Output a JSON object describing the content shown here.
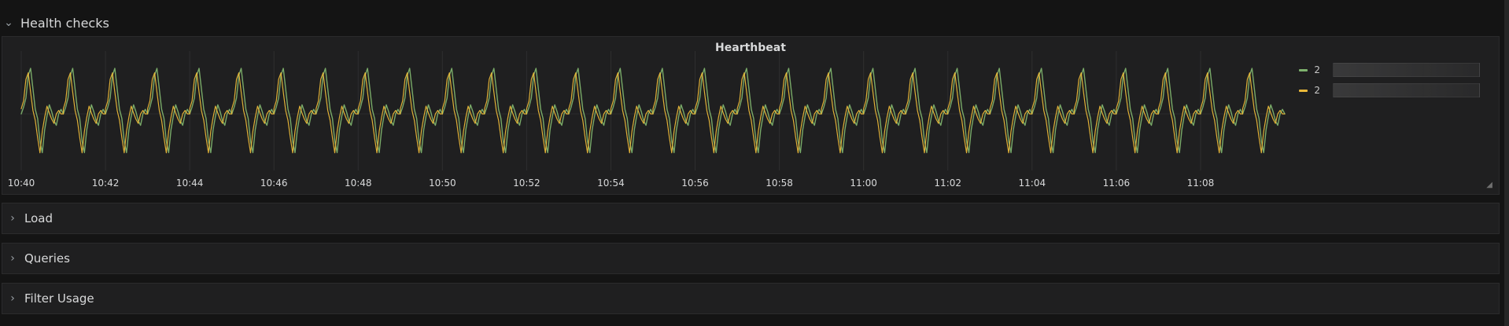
{
  "rows": {
    "expanded": {
      "title": "Health checks",
      "chevron_icon": "chevron-down-icon"
    },
    "collapsed": [
      {
        "title": "Load",
        "chevron_icon": "chevron-right-icon"
      },
      {
        "title": "Queries",
        "chevron_icon": "chevron-right-icon"
      },
      {
        "title": "Filter Usage",
        "chevron_icon": "chevron-right-icon"
      }
    ]
  },
  "panel": {
    "title": "Hearthbeat",
    "legend": [
      {
        "label": "2",
        "color": "#7eb26d"
      },
      {
        "label": "2",
        "color": "#eab839"
      }
    ]
  },
  "colors": {
    "background": "#141414",
    "panel": "#1f1f20",
    "series_green": "#7eb26d",
    "series_yellow": "#eab839"
  },
  "chart_data": {
    "type": "line",
    "title": "Hearthbeat",
    "x_tick_labels": [
      "10:40",
      "10:42",
      "10:44",
      "10:46",
      "10:48",
      "10:50",
      "10:52",
      "10:54",
      "10:56",
      "10:58",
      "11:00",
      "11:02",
      "11:04",
      "11:06",
      "11:08"
    ],
    "xlim": [
      "10:40",
      "11:10"
    ],
    "grid": "vertical only",
    "legend_placement": "right",
    "series": [
      {
        "color": "#7eb26d",
        "pattern_period_minutes": 1,
        "amplitude": 1.0,
        "values_norm_per_period": [
          0.0,
          0.15,
          0.35,
          0.85,
          1.0,
          0.55,
          0.1,
          -0.1,
          -0.6,
          -0.85,
          -0.35,
          -0.05,
          0.2,
          0.05,
          -0.15,
          -0.25,
          0.0,
          0.1,
          0.0
        ]
      },
      {
        "color": "#eab839",
        "pattern_period_minutes": 1,
        "amplitude": 0.95,
        "values_norm_per_period": [
          0.0,
          0.12,
          0.3,
          0.8,
          0.95,
          0.5,
          0.08,
          -0.15,
          -0.55,
          -0.9,
          -0.4,
          -0.08,
          0.18,
          0.02,
          -0.12,
          -0.22,
          0.0,
          0.08,
          0.0
        ]
      }
    ]
  }
}
